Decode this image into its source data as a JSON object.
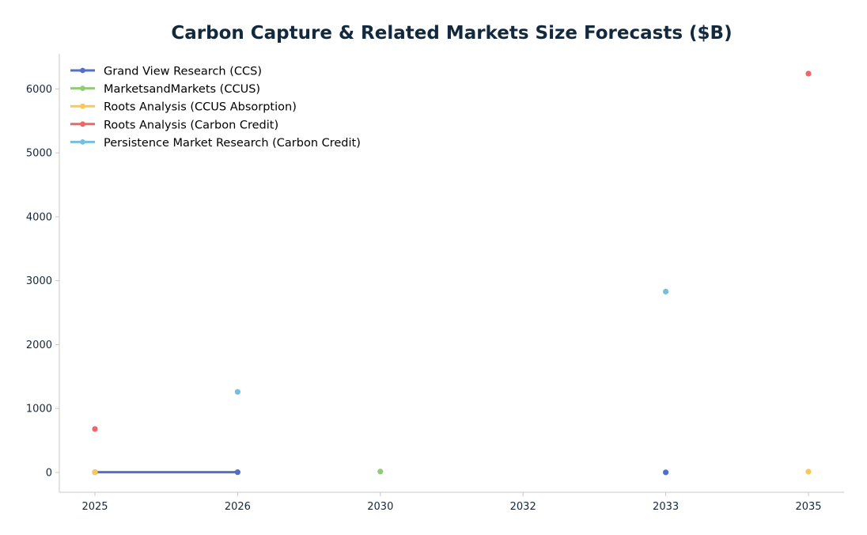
{
  "chart_data": {
    "type": "line",
    "title": "Carbon Capture & Related Markets Size Forecasts ($B)",
    "xlabel": "",
    "ylabel": "",
    "categories": [
      "2025",
      "2026",
      "2030",
      "2032",
      "2033",
      "2035"
    ],
    "y_ticks": [
      "0",
      "1000",
      "2000",
      "3000",
      "4000",
      "5000",
      "6000"
    ],
    "ylim": [
      -310,
      6550
    ],
    "grid": false,
    "legend_position": "top-left",
    "series": [
      {
        "name": "Grand View Research (CCS)",
        "color": "#5470c6",
        "points": [
          {
            "x": "2025",
            "y": 3.5
          },
          {
            "x": "2026",
            "y": 4.0
          },
          {
            "x": "2033",
            "y": 1.5
          }
        ]
      },
      {
        "name": "MarketsandMarkets (CCUS)",
        "color": "#91cc75",
        "points": [
          {
            "x": "2030",
            "y": 14.5
          }
        ]
      },
      {
        "name": "Roots Analysis (CCUS Absorption)",
        "color": "#fac858",
        "points": [
          {
            "x": "2025",
            "y": 3.0
          },
          {
            "x": "2035",
            "y": 12.0
          }
        ]
      },
      {
        "name": "Roots Analysis (Carbon Credit)",
        "color": "#ee6666",
        "points": [
          {
            "x": "2025",
            "y": 680
          },
          {
            "x": "2035",
            "y": 6240
          }
        ]
      },
      {
        "name": "Persistence Market Research (Carbon Credit)",
        "color": "#73c0de",
        "points": [
          {
            "x": "2026",
            "y": 1260
          },
          {
            "x": "2033",
            "y": 2830
          }
        ]
      }
    ]
  }
}
